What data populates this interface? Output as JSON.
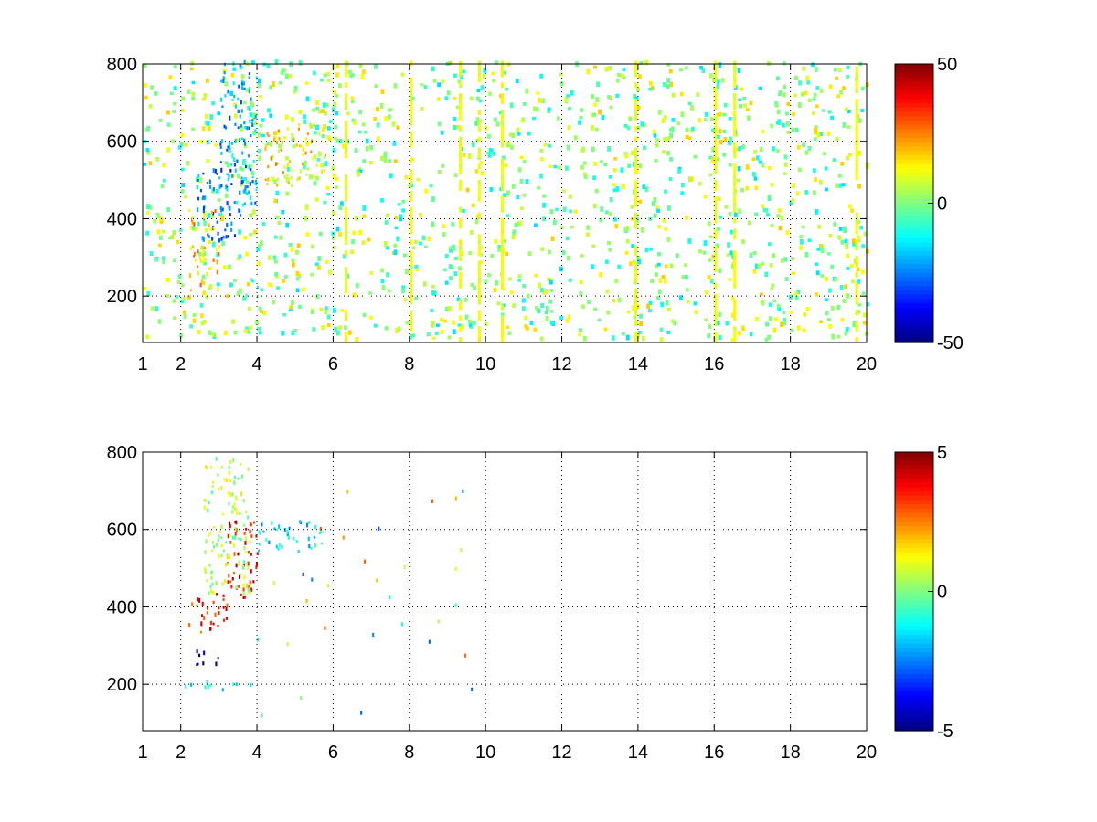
{
  "chart_data": [
    {
      "type": "heatmap",
      "title": "",
      "xlabel": "",
      "ylabel": "",
      "xlim": [
        1,
        20
      ],
      "ylim": [
        80,
        800
      ],
      "x_ticks": [
        "1",
        "2",
        "4",
        "6",
        "8",
        "10",
        "12",
        "14",
        "16",
        "18",
        "20"
      ],
      "y_ticks": [
        "200",
        "400",
        "600",
        "800"
      ],
      "grid": true,
      "colorbar": {
        "min": -50,
        "max": 50,
        "tick_labels": [
          "50",
          "0",
          "-50"
        ],
        "colormap": "jet"
      },
      "regions": [
        {
          "x": [
            2.2,
            3.0
          ],
          "y": [
            200,
            330
          ],
          "value": 18
        },
        {
          "x": [
            2.4,
            3.4
          ],
          "y": [
            330,
            520
          ],
          "value": -25
        },
        {
          "x": [
            3.0,
            4.0
          ],
          "y": [
            400,
            800
          ],
          "value": -22
        },
        {
          "x": [
            4.2,
            5.8
          ],
          "y": [
            480,
            640
          ],
          "value": 15
        },
        {
          "x": [
            2.1,
            2.9
          ],
          "y": [
            360,
            420
          ],
          "value": 20
        },
        {
          "x": [
            3.6,
            4.0
          ],
          "y": [
            180,
            240
          ],
          "value": -10
        }
      ]
    },
    {
      "type": "heatmap",
      "title": "",
      "xlabel": "",
      "ylabel": "",
      "xlim": [
        1,
        20
      ],
      "ylim": [
        80,
        800
      ],
      "x_ticks": [
        "1",
        "2",
        "4",
        "6",
        "8",
        "10",
        "12",
        "14",
        "16",
        "18",
        "20"
      ],
      "y_ticks": [
        "200",
        "400",
        "600",
        "800"
      ],
      "grid": true,
      "colorbar": {
        "min": -5,
        "max": 5,
        "tick_labels": [
          "5",
          "0",
          "-5"
        ],
        "colormap": "jet"
      },
      "regions": [
        {
          "x": [
            2.2,
            3.2
          ],
          "y": [
            330,
            430
          ],
          "value": 3.5
        },
        {
          "x": [
            3.2,
            4.0
          ],
          "y": [
            420,
            620
          ],
          "value": 3.8
        },
        {
          "x": [
            2.3,
            3.0
          ],
          "y": [
            240,
            280
          ],
          "value": -4.6
        },
        {
          "x": [
            2.6,
            3.8
          ],
          "y": [
            430,
            780
          ],
          "value": 0.5
        },
        {
          "x": [
            4.0,
            5.7
          ],
          "y": [
            540,
            620
          ],
          "value": -1.5
        },
        {
          "x": [
            2.1,
            3.9
          ],
          "y": [
            180,
            200
          ],
          "value": -1.2
        }
      ]
    }
  ]
}
